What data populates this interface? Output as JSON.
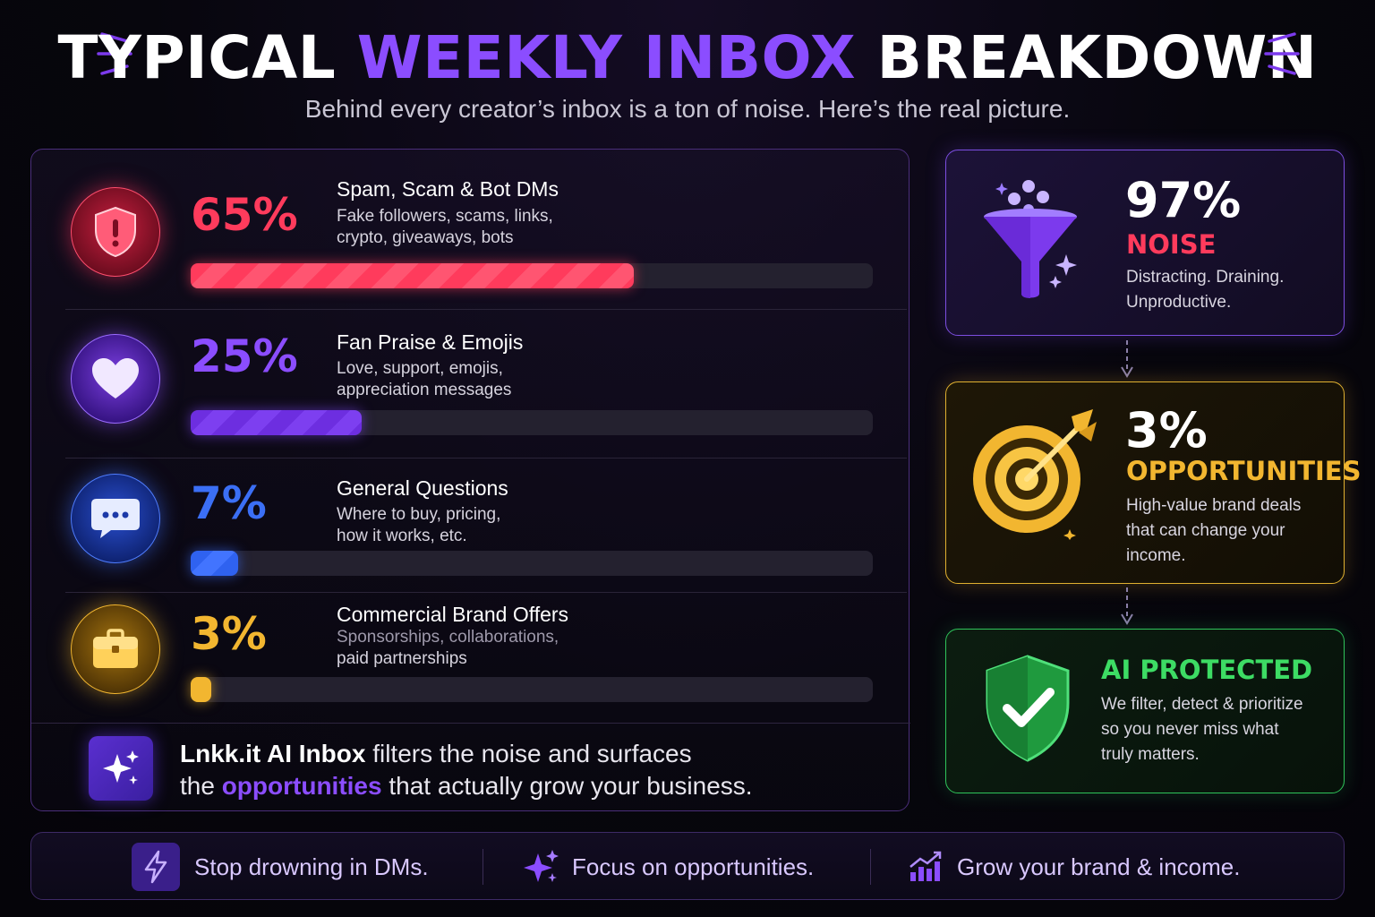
{
  "header": {
    "title_part1": "TYPICAL ",
    "title_accent": "WEEKLY INBOX",
    "title_part2": " BREAKDOWN",
    "subtitle": "Behind every creator’s inbox is a ton of noise. Here’s the real picture."
  },
  "breakdown": [
    {
      "icon": "shield-alert-icon",
      "percent_label": "65%",
      "fraction": 0.65,
      "title": "Spam, Scam & Bot DMs",
      "desc_line1": "Fake followers, scams, links,",
      "desc_line2": "crypto, giveaways, bots",
      "color": "#ff3b5c"
    },
    {
      "icon": "heart-icon",
      "percent_label": "25%",
      "fraction": 0.25,
      "title": "Fan Praise & Emojis",
      "desc_line1": "Love, support, emojis,",
      "desc_line2": "appreciation messages",
      "color": "#7c3aed"
    },
    {
      "icon": "chat-bubble-icon",
      "percent_label": "7%",
      "fraction": 0.07,
      "title": "General Questions",
      "desc_line1": "Where to buy, pricing,",
      "desc_line2": "how it works, etc.",
      "color": "#3b6ff5"
    },
    {
      "icon": "briefcase-icon",
      "percent_label": "3%",
      "fraction": 0.03,
      "title": "Commercial Brand Offers",
      "desc_line1": "Sponsorships, collaborations,",
      "desc_line2": "paid partnerships",
      "color": "#f2b630"
    }
  ],
  "banner": {
    "icon": "sparkle-icon",
    "brand": "Lnkk.it AI Inbox",
    "text_a": " filters the noise and surfaces",
    "text_b": "the ",
    "highlight": "opportunities",
    "text_c": " that actually grow your business."
  },
  "cards": {
    "noise": {
      "icon": "funnel-icon",
      "big": "97%",
      "label": "NOISE",
      "desc_line1": "Distracting. Draining.",
      "desc_line2": "Unproductive.",
      "color": "#ff3b5c"
    },
    "opportunities": {
      "icon": "target-icon",
      "big": "3%",
      "label": "OPPORTUNITIES",
      "desc_line1": "High-value brand deals",
      "desc_line2": "that can change your",
      "desc_line3": "income.",
      "color": "#f2b630"
    },
    "protected": {
      "icon": "shield-check-icon",
      "label": "AI PROTECTED",
      "desc_line1": "We filter, detect & prioritize",
      "desc_line2": "so you never miss what",
      "desc_line3": "truly matters.",
      "color": "#3ddc64"
    }
  },
  "footer": [
    {
      "icon": "lightning-icon",
      "text": "Stop drowning in DMs."
    },
    {
      "icon": "sparkle-icon",
      "text": "Focus on opportunities."
    },
    {
      "icon": "growth-chart-icon",
      "text": "Grow your brand & income."
    }
  ]
}
